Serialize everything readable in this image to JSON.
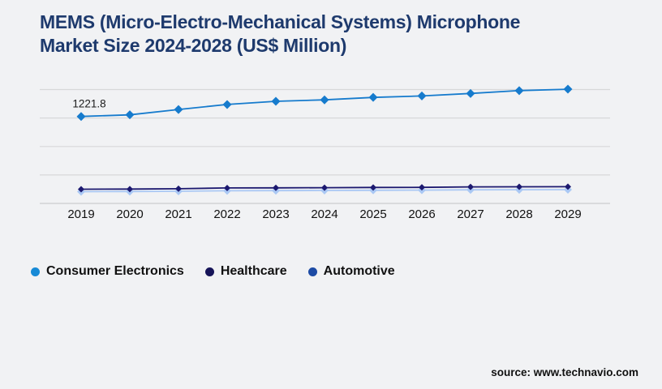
{
  "background": "#f1f2f4",
  "header": {
    "title_lines": [
      "MEMS (Micro-Electro-Mechanical Systems) Microphone",
      "Market Size 2024-2028 (US$ Million)"
    ],
    "title_color": "#1e3a6d"
  },
  "chart_data": {
    "type": "line",
    "title": "MEMS (Micro-Electro-Mechanical Systems) Microphone Market Size 2024-2028 (US$ Million)",
    "xlabel": "",
    "ylabel": "US$ Million",
    "categories": [
      "2019",
      "2020",
      "2021",
      "2022",
      "2023",
      "2024",
      "2025",
      "2026",
      "2027",
      "2028",
      "2029"
    ],
    "series": [
      {
        "name": "Consumer Electronics",
        "color": "#167bcd",
        "legend_color": "#178ad6",
        "marker": "diamond",
        "marker_size": 5.5,
        "values": [
          1221.8,
          1245,
          1320,
          1390,
          1435,
          1455,
          1490,
          1510,
          1545,
          1585,
          1605
        ]
      },
      {
        "name": "Healthcare",
        "color": "#1c1970",
        "legend_color": "#161458",
        "marker": "diamond",
        "marker_size": 4,
        "values": [
          199,
          201,
          206,
          217,
          219,
          221,
          224,
          226,
          232,
          233,
          235
        ]
      },
      {
        "name": "Automotive",
        "color": "#aac8f4",
        "legend_color": "#1d4ba5",
        "marker": "diamond",
        "marker_size": 5,
        "values": [
          165,
          167,
          171,
          178,
          180,
          182,
          185,
          187,
          191,
          192,
          194
        ]
      }
    ],
    "annotations": [
      {
        "text": "1221.8",
        "series": "Consumer Electronics",
        "x_index": 0
      }
    ],
    "ylim": [
      0,
      1600
    ],
    "gridline_values": [
      0,
      400,
      800,
      1200,
      1600
    ],
    "grid_on": true,
    "grid_color": "#d7d8d9",
    "axis_color": "#cbcccd",
    "tick_label_color": "#111111",
    "legend_position": "bottom"
  },
  "footer": {
    "source": "source: www.technavio.com"
  }
}
